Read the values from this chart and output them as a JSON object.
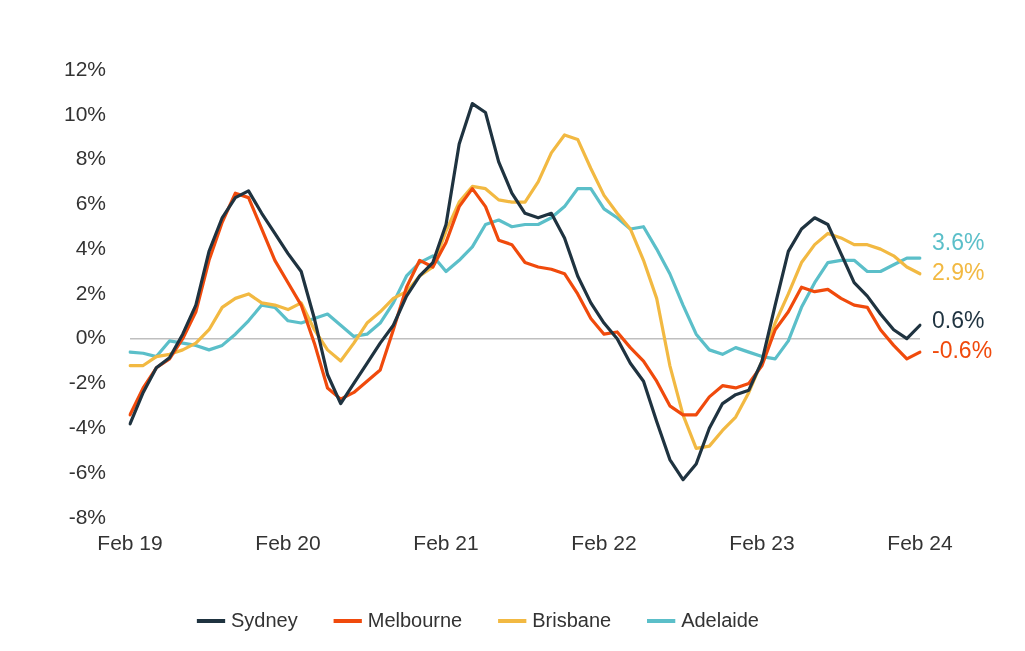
{
  "chart_data": {
    "type": "line",
    "categories": [
      "Feb 19",
      null,
      null,
      null,
      null,
      null,
      null,
      null,
      null,
      null,
      null,
      null,
      "Feb 20",
      null,
      null,
      null,
      null,
      null,
      null,
      null,
      null,
      null,
      null,
      null,
      "Feb 21",
      null,
      null,
      null,
      null,
      null,
      null,
      null,
      null,
      null,
      null,
      null,
      "Feb 22",
      null,
      null,
      null,
      null,
      null,
      null,
      null,
      null,
      null,
      null,
      null,
      "Feb 23",
      null,
      null,
      null,
      null,
      null,
      null,
      null,
      null,
      null,
      null,
      null,
      "Feb 24"
    ],
    "series": [
      {
        "name": "Sydney",
        "color": "#1f3340",
        "values": [
          -3.8,
          -2.4,
          -1.3,
          -0.85,
          0.2,
          1.5,
          3.9,
          5.4,
          6.3,
          6.6,
          5.6,
          4.7,
          3.8,
          3.0,
          0.9,
          -1.6,
          -2.9,
          -2.0,
          -1.1,
          -0.2,
          0.6,
          1.9,
          2.8,
          3.4,
          5.1,
          8.7,
          10.5,
          10.1,
          7.9,
          6.5,
          5.6,
          5.4,
          5.6,
          4.5,
          2.8,
          1.6,
          0.7,
          0.0,
          -1.1,
          -1.9,
          -3.7,
          -5.4,
          -6.3,
          -5.6,
          -4.0,
          -2.9,
          -2.5,
          -2.3,
          -1.0,
          1.5,
          3.9,
          4.9,
          5.4,
          5.1,
          3.8,
          2.5,
          1.9,
          1.1,
          0.4,
          0.0,
          0.6
        ]
      },
      {
        "name": "Melbourne",
        "color": "#f04a0c",
        "values": [
          -3.4,
          -2.2,
          -1.3,
          -0.9,
          0.0,
          1.2,
          3.5,
          5.2,
          6.5,
          6.3,
          4.9,
          3.5,
          2.5,
          1.5,
          -0.2,
          -2.2,
          -2.7,
          -2.4,
          -1.9,
          -1.4,
          0.4,
          2.3,
          3.5,
          3.2,
          4.3,
          5.9,
          6.7,
          5.9,
          4.4,
          4.2,
          3.4,
          3.2,
          3.1,
          2.9,
          2.0,
          0.9,
          0.2,
          0.3,
          -0.4,
          -1.0,
          -1.9,
          -3.0,
          -3.4,
          -3.4,
          -2.6,
          -2.1,
          -2.2,
          -2.0,
          -1.2,
          0.4,
          1.2,
          2.3,
          2.1,
          2.2,
          1.8,
          1.5,
          1.4,
          0.4,
          -0.3,
          -0.9,
          -0.6
        ]
      },
      {
        "name": "Brisbane",
        "color": "#f2b942",
        "values": [
          -1.2,
          -1.2,
          -0.8,
          -0.7,
          -0.5,
          -0.2,
          0.4,
          1.4,
          1.8,
          2.0,
          1.6,
          1.5,
          1.3,
          1.6,
          0.4,
          -0.5,
          -1.0,
          -0.2,
          0.7,
          1.2,
          1.8,
          2.1,
          2.8,
          3.2,
          4.8,
          6.1,
          6.8,
          6.7,
          6.2,
          6.1,
          6.1,
          7.0,
          8.3,
          9.1,
          8.9,
          7.6,
          6.4,
          5.6,
          4.9,
          3.5,
          1.8,
          -1.2,
          -3.4,
          -4.9,
          -4.8,
          -4.1,
          -3.5,
          -2.4,
          -1.0,
          0.7,
          2.0,
          3.4,
          4.2,
          4.7,
          4.5,
          4.2,
          4.2,
          4.0,
          3.7,
          3.2,
          2.9
        ]
      },
      {
        "name": "Adelaide",
        "color": "#5bbfc9",
        "values": [
          -0.6,
          -0.65,
          -0.8,
          -0.1,
          -0.2,
          -0.3,
          -0.5,
          -0.3,
          0.2,
          0.8,
          1.5,
          1.4,
          0.8,
          0.7,
          0.9,
          1.1,
          0.6,
          0.1,
          0.2,
          0.7,
          1.6,
          2.8,
          3.4,
          3.7,
          3.0,
          3.5,
          4.1,
          5.1,
          5.3,
          5.0,
          5.1,
          5.1,
          5.4,
          5.9,
          6.7,
          6.7,
          5.8,
          5.4,
          4.9,
          5.0,
          4.0,
          2.9,
          1.5,
          0.2,
          -0.5,
          -0.7,
          -0.4,
          -0.6,
          -0.8,
          -0.9,
          -0.1,
          1.4,
          2.5,
          3.4,
          3.5,
          3.5,
          3.0,
          3.0,
          3.3,
          3.6,
          3.6
        ]
      }
    ],
    "ylim": [
      -8,
      12
    ],
    "yticks": [
      {
        "value": -8,
        "label": "-8%"
      },
      {
        "value": -6,
        "label": "-6%"
      },
      {
        "value": -4,
        "label": "-4%"
      },
      {
        "value": -2,
        "label": "-2%"
      },
      {
        "value": 0,
        "label": "0%"
      },
      {
        "value": 2,
        "label": "2%"
      },
      {
        "value": 4,
        "label": "4%"
      },
      {
        "value": 6,
        "label": "6%"
      },
      {
        "value": 8,
        "label": "8%"
      },
      {
        "value": 10,
        "label": "10%"
      },
      {
        "value": 12,
        "label": "12%"
      }
    ],
    "ref_lines": [
      {
        "axis": "y",
        "value": 0,
        "color": "#bfbfbf"
      }
    ],
    "annotations": [
      {
        "text": "0.6%",
        "x": "Feb 24",
        "y": 0.6
      },
      {
        "text": "-0.6%",
        "x": "Feb 24",
        "y": -0.6
      },
      {
        "text": "2.9%",
        "x": "Feb 24",
        "y": 2.9
      },
      {
        "text": "3.6%",
        "x": "Feb 24",
        "y": 3.6
      }
    ],
    "grid": false,
    "legend": "bottom",
    "marker": "none",
    "line_style": "solid"
  }
}
